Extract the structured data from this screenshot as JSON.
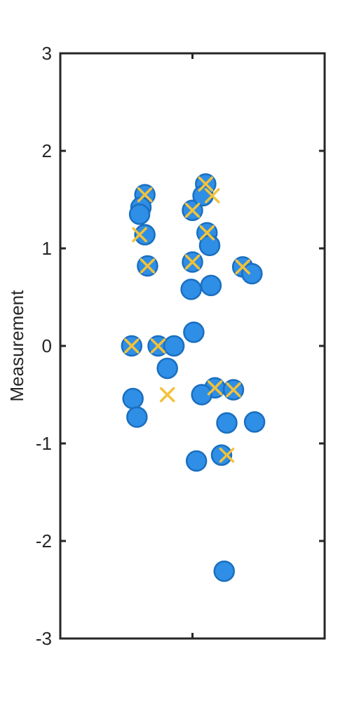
{
  "chart_data": {
    "type": "scatter",
    "title": "",
    "xlabel": "",
    "ylabel": "Measurement",
    "ylim": [
      -3,
      3
    ],
    "yticks": [
      -3,
      -2,
      -1,
      0,
      1,
      2,
      3
    ],
    "ytick_labels": [
      "-3",
      "-2",
      "-1",
      "0",
      "1",
      "2",
      "3"
    ],
    "xlim": [
      -1,
      1
    ],
    "grid": false,
    "legend": "none",
    "colors": {
      "marker_fill": "#2f8ee6",
      "marker_edge": "#1a6fbf",
      "cross": "#f2c23a",
      "axis": "#262626"
    },
    "series": [
      {
        "marker": "circle",
        "x": [
          -0.36,
          -0.39,
          -0.4,
          -0.36,
          -0.34,
          0.1,
          0.0,
          0.08,
          0.11,
          0.13,
          0.0,
          0.38,
          0.45,
          0.14,
          -0.46,
          -0.26,
          -0.14,
          0.01,
          -0.45,
          -0.19,
          0.17,
          0.31,
          -0.42,
          0.07,
          0.47,
          0.26,
          0.03,
          0.22
        ],
        "y": [
          1.55,
          1.42,
          1.35,
          1.14,
          0.82,
          1.66,
          1.39,
          1.54,
          1.16,
          1.03,
          0.86,
          0.81,
          0.74,
          0.62,
          0.0,
          0.0,
          0.0,
          0.14,
          -0.54,
          -0.23,
          -0.43,
          -0.45,
          -0.73,
          -0.5,
          -0.78,
          -0.79,
          -1.18,
          -1.12
        ]
      },
      {
        "marker": "x",
        "x": [
          -0.36,
          -0.4,
          -0.34,
          0.1,
          0.0,
          0.15,
          0.11,
          0.0,
          0.38,
          -0.46,
          -0.26,
          0.17,
          0.31,
          -0.19,
          0.26
        ],
        "y": [
          1.55,
          1.14,
          0.82,
          1.66,
          1.39,
          1.54,
          1.16,
          0.86,
          0.81,
          0.0,
          0.0,
          -0.43,
          -0.45,
          -0.5,
          -1.12
        ]
      },
      {
        "marker": "circle",
        "x": [
          0.24,
          -0.01
        ],
        "y": [
          -2.31,
          0.58
        ]
      }
    ]
  }
}
